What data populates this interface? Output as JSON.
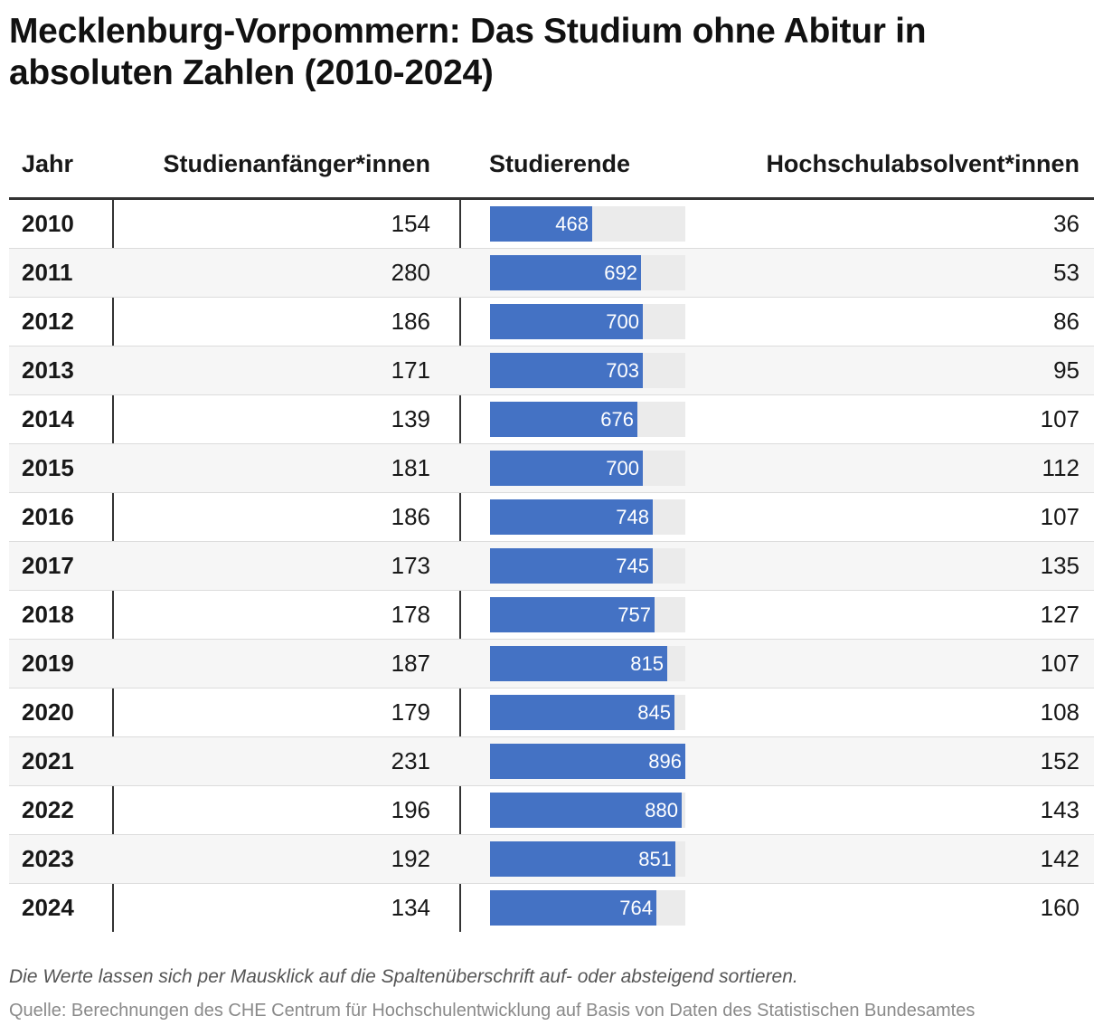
{
  "title": "Mecklenburg-Vorpommern: Das Studium ohne Abitur in absoluten Zahlen (2010-2024)",
  "columns": {
    "jahr": "Jahr",
    "anf": "Studienanfänger*innen",
    "stud": "Studierende",
    "abs": "Hochschulabsolvent*innen"
  },
  "rows": [
    {
      "year": "2010",
      "anf": "154",
      "stud": "468",
      "abs": "36"
    },
    {
      "year": "2011",
      "anf": "280",
      "stud": "692",
      "abs": "53"
    },
    {
      "year": "2012",
      "anf": "186",
      "stud": "700",
      "abs": "86"
    },
    {
      "year": "2013",
      "anf": "171",
      "stud": "703",
      "abs": "95"
    },
    {
      "year": "2014",
      "anf": "139",
      "stud": "676",
      "abs": "107"
    },
    {
      "year": "2015",
      "anf": "181",
      "stud": "700",
      "abs": "112"
    },
    {
      "year": "2016",
      "anf": "186",
      "stud": "748",
      "abs": "107"
    },
    {
      "year": "2017",
      "anf": "173",
      "stud": "745",
      "abs": "135"
    },
    {
      "year": "2018",
      "anf": "178",
      "stud": "757",
      "abs": "127"
    },
    {
      "year": "2019",
      "anf": "187",
      "stud": "815",
      "abs": "107"
    },
    {
      "year": "2020",
      "anf": "179",
      "stud": "845",
      "abs": "108"
    },
    {
      "year": "2021",
      "anf": "231",
      "stud": "896",
      "abs": "152"
    },
    {
      "year": "2022",
      "anf": "196",
      "stud": "880",
      "abs": "143"
    },
    {
      "year": "2023",
      "anf": "192",
      "stud": "851",
      "abs": "142"
    },
    {
      "year": "2024",
      "anf": "134",
      "stud": "764",
      "abs": "160"
    }
  ],
  "note": "Die Werte lassen sich per Mausklick auf die Spaltenüberschrift auf- oder absteigend sortieren.",
  "source": "Quelle: Berechnungen des CHE Centrum für Hochschulentwicklung auf Basis von Daten des Statistischen Bundesamtes",
  "colors": {
    "bar": "#4472c4",
    "track": "#ebebeb"
  },
  "chart_data": {
    "type": "table",
    "title": "Mecklenburg-Vorpommern: Das Studium ohne Abitur in absoluten Zahlen (2010-2024)",
    "categories": [
      "2010",
      "2011",
      "2012",
      "2013",
      "2014",
      "2015",
      "2016",
      "2017",
      "2018",
      "2019",
      "2020",
      "2021",
      "2022",
      "2023",
      "2024"
    ],
    "series": [
      {
        "name": "Studienanfänger*innen",
        "values": [
          154,
          280,
          186,
          171,
          139,
          181,
          186,
          173,
          178,
          187,
          179,
          231,
          196,
          192,
          134
        ]
      },
      {
        "name": "Studierende",
        "values": [
          468,
          692,
          700,
          703,
          676,
          700,
          748,
          745,
          757,
          815,
          845,
          896,
          880,
          851,
          764
        ],
        "display": "bar"
      },
      {
        "name": "Hochschulabsolvent*innen",
        "values": [
          36,
          53,
          86,
          95,
          107,
          112,
          107,
          135,
          127,
          107,
          108,
          152,
          143,
          142,
          160
        ]
      }
    ],
    "bar_max": 896
  }
}
